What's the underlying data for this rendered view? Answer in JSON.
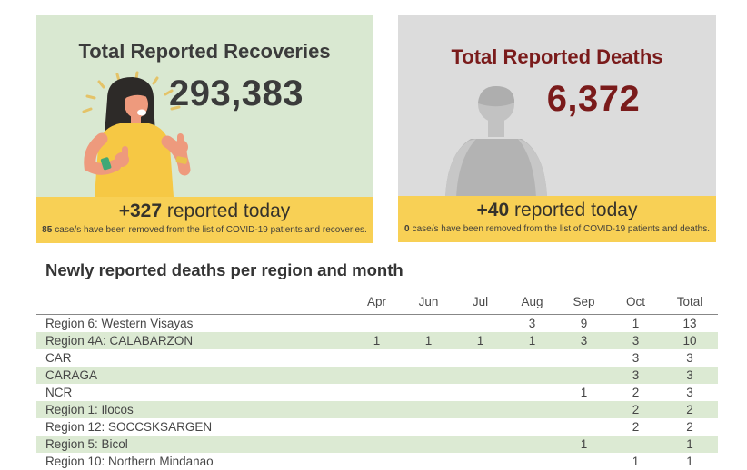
{
  "recoveries_card": {
    "title": "Total Reported Recoveries",
    "total": "293,383",
    "today_count": "+327",
    "today_label": "reported today",
    "removed_count": "85",
    "removed_text": "case/s have been removed from the list of COVID-19 patients and recoveries.",
    "illustration": "recovered-woman-thumbs-up",
    "colors": {
      "background": "#d9e8d1",
      "text": "#3b3b3b",
      "footer_background": "#f8d055"
    }
  },
  "deaths_card": {
    "title": "Total Reported Deaths",
    "total": "6,372",
    "today_count": "+40",
    "today_label": "reported today",
    "removed_count": "0",
    "removed_text": "case/s have been removed from the list of COVID-19 patients and deaths.",
    "illustration": "gray-person-silhouette",
    "colors": {
      "background": "#dcdcdc",
      "text": "#7a1b1b",
      "footer_background": "#f8d055"
    }
  },
  "deaths_table": {
    "title": "Newly reported deaths per region and month",
    "columns": [
      "Apr",
      "Jun",
      "Jul",
      "Aug",
      "Sep",
      "Oct",
      "Total"
    ],
    "highlight_color": "#dcead3",
    "rows": [
      {
        "region": "Region 6: Western Visayas",
        "values": [
          "",
          "",
          "",
          "3",
          "9",
          "1",
          "13"
        ],
        "highlight": false
      },
      {
        "region": "Region 4A: CALABARZON",
        "values": [
          "1",
          "1",
          "1",
          "1",
          "3",
          "3",
          "10"
        ],
        "highlight": true
      },
      {
        "region": "CAR",
        "values": [
          "",
          "",
          "",
          "",
          "",
          "3",
          "3"
        ],
        "highlight": false
      },
      {
        "region": "CARAGA",
        "values": [
          "",
          "",
          "",
          "",
          "",
          "3",
          "3"
        ],
        "highlight": true
      },
      {
        "region": "NCR",
        "values": [
          "",
          "",
          "",
          "",
          "1",
          "2",
          "3"
        ],
        "highlight": false
      },
      {
        "region": "Region 1: Ilocos",
        "values": [
          "",
          "",
          "",
          "",
          "",
          "2",
          "2"
        ],
        "highlight": true
      },
      {
        "region": "Region 12: SOCCSKSARGEN",
        "values": [
          "",
          "",
          "",
          "",
          "",
          "2",
          "2"
        ],
        "highlight": false
      },
      {
        "region": "Region 5: Bicol",
        "values": [
          "",
          "",
          "",
          "",
          "1",
          "",
          "1"
        ],
        "highlight": true
      },
      {
        "region": "Region 10: Northern Mindanao",
        "values": [
          "",
          "",
          "",
          "",
          "",
          "1",
          "1"
        ],
        "highlight": false
      }
    ]
  }
}
